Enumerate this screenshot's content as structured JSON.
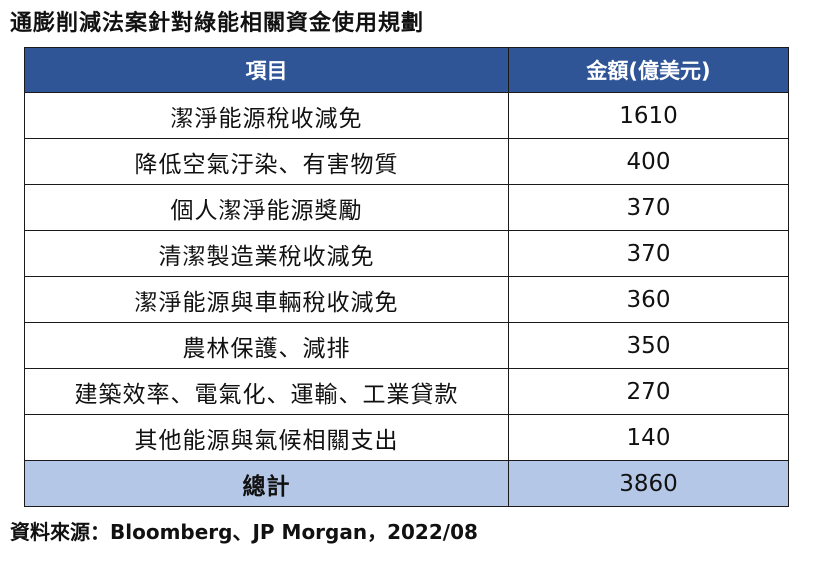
{
  "title": "通膨削減法案針對綠能相關資金使用規劃",
  "table": {
    "headers": [
      "項目",
      "金額(億美元)"
    ],
    "rows": [
      {
        "item": "潔淨能源稅收減免",
        "amount": "1610"
      },
      {
        "item": "降低空氣汙染、有害物質",
        "amount": "400"
      },
      {
        "item": "個人潔淨能源獎勵",
        "amount": "370"
      },
      {
        "item": "清潔製造業稅收減免",
        "amount": "370"
      },
      {
        "item": "潔淨能源與車輛稅收減免",
        "amount": "360"
      },
      {
        "item": "農林保護、減排",
        "amount": "350"
      },
      {
        "item": "建築效率、電氣化、運輸、工業貸款",
        "amount": "270"
      },
      {
        "item": "其他能源與氣候相關支出",
        "amount": "140"
      }
    ],
    "total": {
      "item": "總計",
      "amount": "3860"
    }
  },
  "source": "資料來源：Bloomberg、JP Morgan，2022/08",
  "colors": {
    "header_bg": "#2f5597",
    "header_text": "#ffffff",
    "total_bg": "#b4c7e7",
    "border": "#1a1a1a"
  }
}
